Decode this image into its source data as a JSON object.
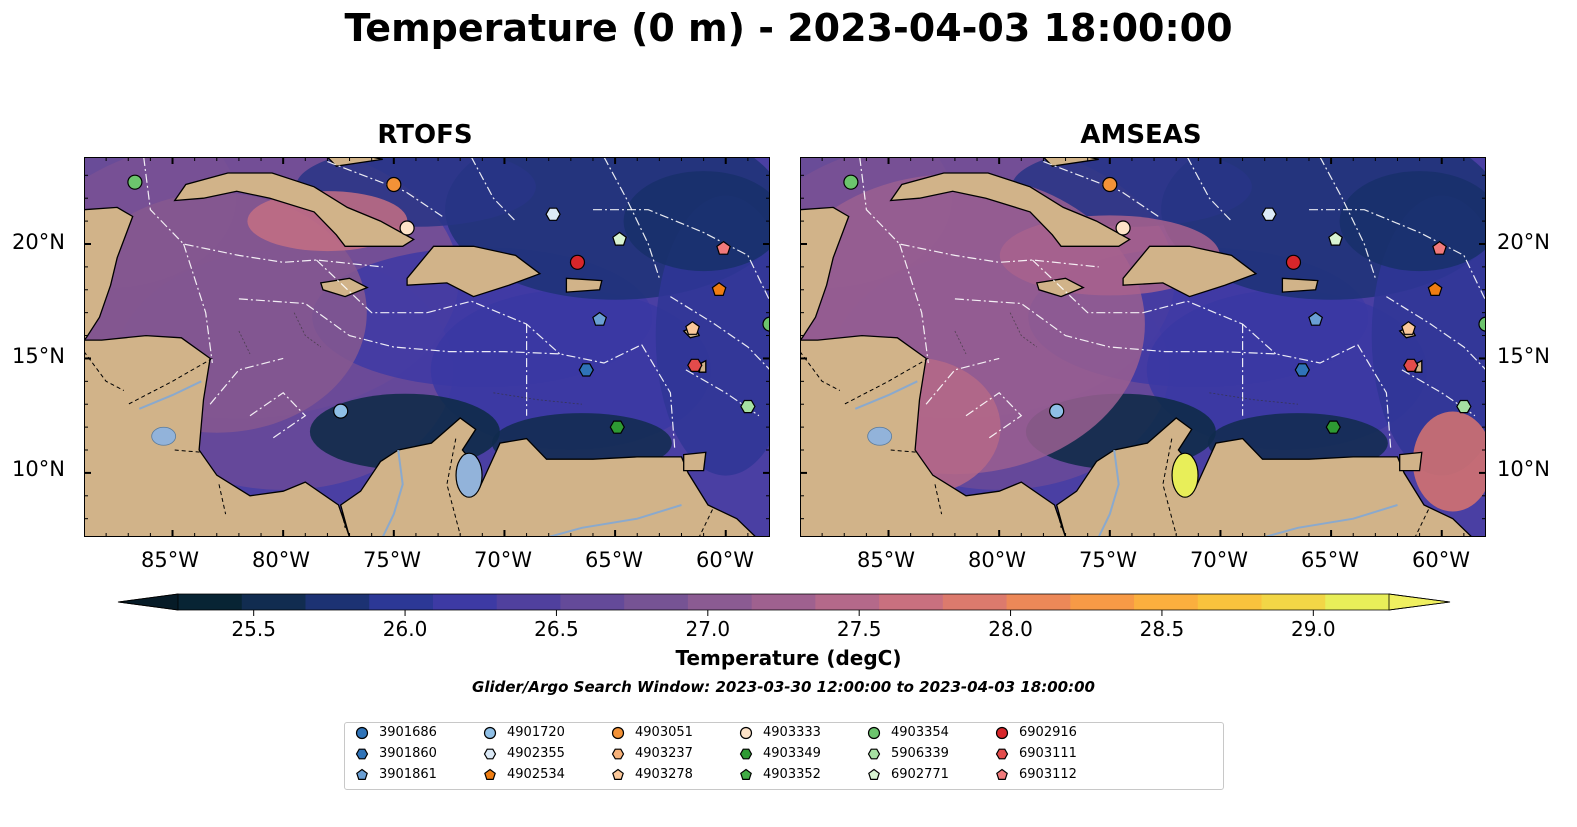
{
  "title": "Temperature (0 m) - 2023-04-03 18:00:00",
  "panels": [
    {
      "title": "RTOFS"
    },
    {
      "title": "AMSEAS"
    }
  ],
  "axes": {
    "lon_ticks": [
      "85°W",
      "80°W",
      "75°W",
      "70°W",
      "65°W",
      "60°W"
    ],
    "lat_ticks": [
      "20°N",
      "15°N",
      "10°N"
    ],
    "lon_range": [
      -89,
      -58
    ],
    "lat_range": [
      7.2,
      23.8
    ]
  },
  "colorbar": {
    "label": "Temperature (degC)",
    "ticks": [
      "25.5",
      "26.0",
      "26.5",
      "27.0",
      "27.5",
      "28.0",
      "28.5",
      "29.0"
    ],
    "min": 25.25,
    "max": 29.25,
    "colors": [
      "#082434",
      "#112c50",
      "#1c3273",
      "#2c3896",
      "#3d3aa4",
      "#50409e",
      "#644a99",
      "#765394",
      "#8b5b92",
      "#9f618f",
      "#b4698a",
      "#c9707f",
      "#dc7a6d",
      "#ec8858",
      "#f79a46",
      "#fbaf3e",
      "#f9c33d",
      "#f2d646",
      "#e8ee59"
    ],
    "extend": "both"
  },
  "search_window": "Glider/Argo Search Window: 2023-03-30 12:00:00 to 2023-04-03 18:00:00",
  "colors": {
    "land": "#d1b389",
    "lake": "#92b3da",
    "ocean_warm_left": "#e8f55c",
    "ocean_blue_right": "#97b7de"
  },
  "legend": [
    {
      "id": "3901686",
      "marker": "circle",
      "color": "#2f73b8"
    },
    {
      "id": "3901860",
      "marker": "hexagon",
      "color": "#2f73b8"
    },
    {
      "id": "3901861",
      "marker": "pentagon",
      "color": "#6a9fd4"
    },
    {
      "id": "4901720",
      "marker": "circle",
      "color": "#8fbfe6"
    },
    {
      "id": "4902355",
      "marker": "hexagon",
      "color": "#dceaf7"
    },
    {
      "id": "4902534",
      "marker": "pentagon",
      "color": "#ef7d12"
    },
    {
      "id": "4903051",
      "marker": "circle",
      "color": "#f39237"
    },
    {
      "id": "4903237",
      "marker": "hexagon",
      "color": "#f7b27a"
    },
    {
      "id": "4903278",
      "marker": "pentagon",
      "color": "#fbc89a"
    },
    {
      "id": "4903333",
      "marker": "circle",
      "color": "#fde3c8"
    },
    {
      "id": "4903349",
      "marker": "hexagon",
      "color": "#2e9a33"
    },
    {
      "id": "4903352",
      "marker": "pentagon",
      "color": "#41ab45"
    },
    {
      "id": "4903354",
      "marker": "circle",
      "color": "#6cc46d"
    },
    {
      "id": "5906339",
      "marker": "hexagon",
      "color": "#a6e0a2"
    },
    {
      "id": "6902771",
      "marker": "pentagon",
      "color": "#d8f3d2"
    },
    {
      "id": "6902916",
      "marker": "circle",
      "color": "#d7262a"
    },
    {
      "id": "6903111",
      "marker": "hexagon",
      "color": "#e34b4b"
    },
    {
      "id": "6903112",
      "marker": "pentagon",
      "color": "#f17a7b"
    }
  ],
  "floats": [
    {
      "id": "4903354",
      "lon": -86.7,
      "lat": 22.7
    },
    {
      "id": "4903051",
      "lon": -75.0,
      "lat": 22.6
    },
    {
      "id": "4903333",
      "lon": -74.4,
      "lat": 20.7
    },
    {
      "id": "4902355",
      "lon": -67.8,
      "lat": 21.3
    },
    {
      "id": "6902771",
      "lon": -64.8,
      "lat": 20.2
    },
    {
      "id": "6902916",
      "lon": -66.7,
      "lat": 19.2
    },
    {
      "id": "6903112",
      "lon": -60.1,
      "lat": 19.8
    },
    {
      "id": "4902534",
      "lon": -60.3,
      "lat": 18.0
    },
    {
      "id": "3901861",
      "lon": -65.7,
      "lat": 16.7
    },
    {
      "id": "4903278",
      "lon": -61.5,
      "lat": 16.3
    },
    {
      "id": "4903354",
      "lon": -58.0,
      "lat": 16.5
    },
    {
      "id": "6903111",
      "lon": -61.4,
      "lat": 14.7
    },
    {
      "id": "3901860",
      "lon": -66.3,
      "lat": 14.5
    },
    {
      "id": "4901720",
      "lon": -77.4,
      "lat": 12.7
    },
    {
      "id": "5906339",
      "lon": -59.0,
      "lat": 12.9
    },
    {
      "id": "4903349",
      "lon": -64.9,
      "lat": 12.0
    }
  ]
}
